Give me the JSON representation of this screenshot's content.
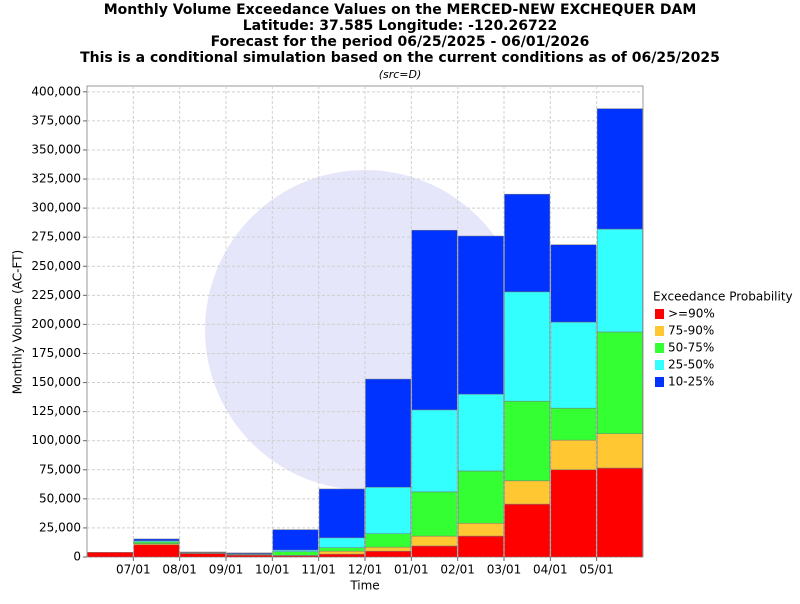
{
  "chart_data": {
    "type": "stacked_bar",
    "title": "Monthly Volume Exceedance Values on the MERCED-NEW EXCHEQUER DAM",
    "subtitle": [
      "Latitude: 37.585 Longitude: -120.26722",
      "Forecast for the period 06/25/2025 - 06/01/2026",
      "This is a conditional simulation based on the current conditions as of 06/25/2025"
    ],
    "note": "(src=D)",
    "x_label": "Time",
    "y_label": "Monthly Volume (AC-FT)",
    "legend_title": "Exceedance Probability",
    "categories": [
      null,
      "07/01",
      "08/01",
      "09/01",
      "10/01",
      "11/01",
      "12/01",
      "01/01",
      "02/01",
      "03/01",
      "04/01",
      "05/01"
    ],
    "series": [
      {
        "name": ">=90%",
        "color": "#ff0000",
        "values": [
          4000,
          10500,
          3000,
          1500,
          1000,
          2500,
          5000,
          9500,
          18000,
          45500,
          75000,
          76500
        ]
      },
      {
        "name": "75-90%",
        "color": "#ffc832",
        "values": [
          0,
          1000,
          300,
          300,
          500,
          2500,
          3500,
          8500,
          11000,
          20000,
          25500,
          29500
        ]
      },
      {
        "name": "50-75%",
        "color": "#33ff33",
        "values": [
          0,
          1500,
          300,
          500,
          3000,
          3000,
          11500,
          38000,
          45000,
          68500,
          27500,
          87500
        ]
      },
      {
        "name": "25-50%",
        "color": "#33ffff",
        "values": [
          0,
          1000,
          300,
          500,
          1500,
          8500,
          40000,
          70500,
          66000,
          94000,
          74000,
          88500
        ]
      },
      {
        "name": "10-25%",
        "color": "#0033ff",
        "values": [
          0,
          1500,
          400,
          700,
          17500,
          42000,
          93000,
          154500,
          136000,
          84000,
          66500,
          103500
        ]
      }
    ],
    "ylim": [
      0,
      405000
    ],
    "yticks": [
      0,
      {
        "value": 25000,
        "label": "25,000"
      },
      {
        "value": 50000,
        "label": "50,000"
      },
      {
        "value": 75000,
        "label": "75,000"
      },
      {
        "value": 100000,
        "label": "100,000"
      },
      {
        "value": 125000,
        "label": "125,000"
      },
      {
        "value": 150000,
        "label": "150,000"
      },
      {
        "value": 175000,
        "label": "175,000"
      },
      {
        "value": 200000,
        "label": "200,000"
      },
      {
        "value": 225000,
        "label": "225,000"
      },
      {
        "value": 250000,
        "label": "250,000"
      },
      {
        "value": 275000,
        "label": "275,000"
      },
      {
        "value": 300000,
        "label": "300,000"
      },
      {
        "value": 325000,
        "label": "325,000"
      },
      {
        "value": 350000,
        "label": "350,000"
      },
      {
        "value": 375000,
        "label": "375,000"
      },
      {
        "value": 400000,
        "label": "400,000"
      }
    ],
    "grid": true,
    "legend": "right"
  }
}
